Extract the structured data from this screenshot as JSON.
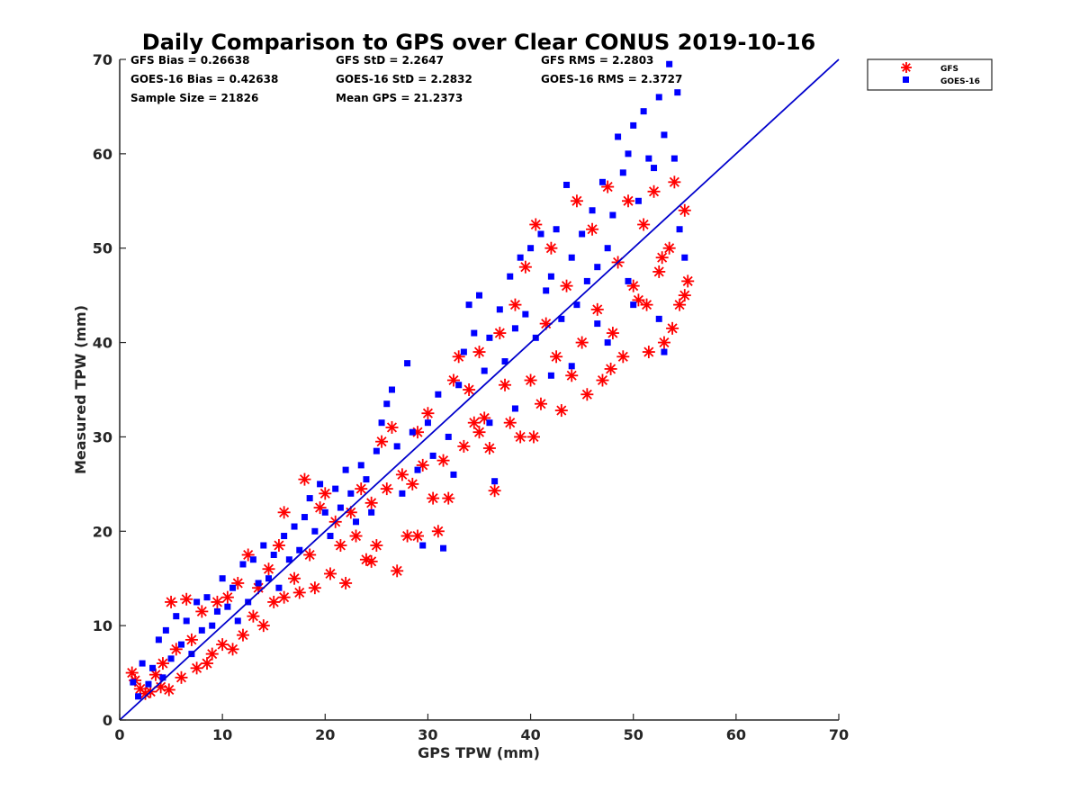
{
  "chart_data": {
    "type": "scatter",
    "title": "Daily Comparison to GPS over Clear CONUS 2019-10-16",
    "xlabel": "GPS TPW (mm)",
    "ylabel": "Measured TPW (mm)",
    "xlim": [
      0,
      70
    ],
    "ylim": [
      0,
      70
    ],
    "xticks": [
      0,
      10,
      20,
      30,
      40,
      50,
      60,
      70
    ],
    "yticks": [
      0,
      10,
      20,
      30,
      40,
      50,
      60,
      70
    ],
    "grid": false,
    "legend_position": "outside top-right",
    "stats": [
      "GFS Bias = 0.26638",
      "GFS StD = 2.2647",
      "GFS RMS = 2.2803",
      "GOES-16 Bias = 0.42638",
      "GOES-16 StD = 2.2832",
      "GOES-16 RMS = 2.3727",
      "Sample Size = 21826",
      "Mean GPS = 21.2373"
    ],
    "reference_line": {
      "name": "1:1 line",
      "x": [
        0,
        70
      ],
      "y": [
        0,
        70
      ],
      "color": "#0000cc"
    },
    "series": [
      {
        "name": "GFS",
        "marker": "asterisk",
        "color": "#ff0000",
        "points": [
          [
            1.2,
            5.0
          ],
          [
            1.5,
            4.2
          ],
          [
            2.0,
            3.3
          ],
          [
            2.5,
            2.8
          ],
          [
            3.0,
            3.0
          ],
          [
            3.5,
            4.8
          ],
          [
            4.0,
            3.5
          ],
          [
            4.2,
            6.0
          ],
          [
            4.8,
            3.2
          ],
          [
            5.0,
            12.5
          ],
          [
            5.5,
            7.5
          ],
          [
            6.0,
            4.5
          ],
          [
            6.5,
            12.8
          ],
          [
            7.0,
            8.5
          ],
          [
            7.5,
            5.5
          ],
          [
            8.0,
            11.5
          ],
          [
            8.5,
            6.0
          ],
          [
            9.0,
            7.0
          ],
          [
            9.5,
            12.5
          ],
          [
            10.0,
            8.0
          ],
          [
            10.5,
            13.0
          ],
          [
            11.0,
            7.5
          ],
          [
            11.5,
            14.5
          ],
          [
            12.0,
            9.0
          ],
          [
            12.5,
            17.5
          ],
          [
            13.0,
            11.0
          ],
          [
            13.5,
            14.0
          ],
          [
            14.0,
            10.0
          ],
          [
            14.5,
            16.0
          ],
          [
            15.0,
            12.5
          ],
          [
            15.5,
            18.5
          ],
          [
            16.0,
            13.0
          ],
          [
            16.0,
            22.0
          ],
          [
            17.0,
            15.0
          ],
          [
            17.5,
            13.5
          ],
          [
            18.0,
            25.5
          ],
          [
            18.5,
            17.5
          ],
          [
            19.0,
            14.0
          ],
          [
            19.5,
            22.5
          ],
          [
            20.0,
            24.0
          ],
          [
            20.5,
            15.5
          ],
          [
            21.0,
            21.0
          ],
          [
            21.5,
            18.5
          ],
          [
            22.0,
            14.5
          ],
          [
            22.5,
            22.0
          ],
          [
            23.0,
            19.5
          ],
          [
            23.5,
            24.5
          ],
          [
            24.0,
            17.0
          ],
          [
            24.5,
            23.0
          ],
          [
            25.0,
            18.5
          ],
          [
            25.5,
            29.5
          ],
          [
            26.0,
            24.5
          ],
          [
            26.5,
            31.0
          ],
          [
            27.0,
            15.8
          ],
          [
            27.5,
            26.0
          ],
          [
            28.0,
            19.5
          ],
          [
            28.5,
            25.0
          ],
          [
            29.0,
            30.5
          ],
          [
            29.5,
            27.0
          ],
          [
            30.0,
            32.5
          ],
          [
            30.5,
            23.5
          ],
          [
            31.0,
            20.0
          ],
          [
            31.5,
            27.5
          ],
          [
            32.0,
            23.5
          ],
          [
            32.5,
            36.0
          ],
          [
            33.0,
            38.5
          ],
          [
            33.5,
            29.0
          ],
          [
            34.0,
            35.0
          ],
          [
            34.5,
            31.5
          ],
          [
            35.0,
            39.0
          ],
          [
            35.5,
            32.0
          ],
          [
            36.0,
            28.8
          ],
          [
            36.5,
            24.3
          ],
          [
            37.0,
            41.0
          ],
          [
            37.5,
            35.5
          ],
          [
            38.0,
            31.5
          ],
          [
            38.5,
            44.0
          ],
          [
            39.0,
            30.0
          ],
          [
            39.5,
            48.0
          ],
          [
            40.0,
            36.0
          ],
          [
            40.5,
            52.5
          ],
          [
            41.0,
            33.5
          ],
          [
            41.5,
            42.0
          ],
          [
            42.0,
            50.0
          ],
          [
            42.5,
            38.5
          ],
          [
            43.0,
            32.8
          ],
          [
            43.5,
            46.0
          ],
          [
            44.0,
            36.5
          ],
          [
            44.5,
            55.0
          ],
          [
            45.0,
            40.0
          ],
          [
            45.5,
            34.5
          ],
          [
            46.0,
            52.0
          ],
          [
            46.5,
            43.5
          ],
          [
            47.0,
            36.0
          ],
          [
            47.5,
            56.5
          ],
          [
            48.0,
            41.0
          ],
          [
            48.5,
            48.5
          ],
          [
            49.0,
            38.5
          ],
          [
            49.5,
            55.0
          ],
          [
            50.0,
            46.0
          ],
          [
            50.5,
            44.5
          ],
          [
            51.0,
            52.5
          ],
          [
            51.5,
            39.0
          ],
          [
            52.0,
            56.0
          ],
          [
            52.5,
            47.5
          ],
          [
            53.0,
            40.0
          ],
          [
            53.5,
            50.0
          ],
          [
            54.0,
            57.0
          ],
          [
            54.5,
            44.0
          ],
          [
            55.0,
            45.0
          ],
          [
            55.3,
            46.5
          ],
          [
            55.0,
            54.0
          ],
          [
            53.8,
            41.5
          ],
          [
            52.8,
            49.0
          ],
          [
            51.3,
            44.0
          ],
          [
            47.8,
            37.2
          ],
          [
            40.3,
            30.0
          ],
          [
            35.0,
            30.5
          ],
          [
            24.5,
            16.8
          ],
          [
            29.0,
            19.5
          ]
        ]
      },
      {
        "name": "GOES-16",
        "marker": "square",
        "color": "#0000ff",
        "points": [
          [
            1.3,
            4.0
          ],
          [
            1.8,
            2.5
          ],
          [
            2.2,
            6.0
          ],
          [
            2.8,
            3.8
          ],
          [
            3.2,
            5.5
          ],
          [
            3.8,
            8.5
          ],
          [
            4.2,
            4.5
          ],
          [
            4.5,
            9.5
          ],
          [
            5.0,
            6.5
          ],
          [
            5.5,
            11.0
          ],
          [
            6.0,
            8.0
          ],
          [
            6.5,
            10.5
          ],
          [
            7.0,
            7.0
          ],
          [
            7.5,
            12.5
          ],
          [
            8.0,
            9.5
          ],
          [
            8.5,
            13.0
          ],
          [
            9.0,
            10.0
          ],
          [
            9.5,
            11.5
          ],
          [
            10.0,
            15.0
          ],
          [
            10.5,
            12.0
          ],
          [
            11.0,
            14.0
          ],
          [
            11.5,
            10.5
          ],
          [
            12.0,
            16.5
          ],
          [
            12.5,
            12.5
          ],
          [
            13.0,
            17.0
          ],
          [
            13.5,
            14.5
          ],
          [
            14.0,
            18.5
          ],
          [
            14.5,
            15.0
          ],
          [
            15.0,
            17.5
          ],
          [
            15.5,
            14.0
          ],
          [
            16.0,
            19.5
          ],
          [
            16.5,
            17.0
          ],
          [
            17.0,
            20.5
          ],
          [
            17.5,
            18.0
          ],
          [
            18.0,
            21.5
          ],
          [
            18.5,
            23.5
          ],
          [
            19.0,
            20.0
          ],
          [
            19.5,
            25.0
          ],
          [
            20.0,
            22.0
          ],
          [
            20.5,
            19.5
          ],
          [
            21.0,
            24.5
          ],
          [
            21.5,
            22.5
          ],
          [
            22.0,
            26.5
          ],
          [
            22.5,
            24.0
          ],
          [
            23.0,
            21.0
          ],
          [
            23.5,
            27.0
          ],
          [
            24.0,
            25.5
          ],
          [
            24.5,
            22.0
          ],
          [
            25.0,
            28.5
          ],
          [
            25.5,
            31.5
          ],
          [
            26.0,
            33.5
          ],
          [
            26.5,
            35.0
          ],
          [
            27.0,
            29.0
          ],
          [
            27.5,
            24.0
          ],
          [
            28.0,
            37.8
          ],
          [
            28.5,
            30.5
          ],
          [
            29.0,
            26.5
          ],
          [
            29.5,
            18.5
          ],
          [
            30.0,
            31.5
          ],
          [
            30.5,
            28.0
          ],
          [
            31.0,
            34.5
          ],
          [
            31.5,
            18.2
          ],
          [
            32.0,
            30.0
          ],
          [
            32.5,
            26.0
          ],
          [
            33.0,
            35.5
          ],
          [
            33.5,
            39.0
          ],
          [
            34.0,
            44.0
          ],
          [
            34.5,
            41.0
          ],
          [
            35.0,
            45.0
          ],
          [
            35.5,
            37.0
          ],
          [
            36.0,
            40.5
          ],
          [
            36.5,
            25.3
          ],
          [
            37.0,
            43.5
          ],
          [
            37.5,
            38.0
          ],
          [
            38.0,
            47.0
          ],
          [
            38.5,
            41.5
          ],
          [
            39.0,
            49.0
          ],
          [
            39.5,
            43.0
          ],
          [
            40.0,
            50.0
          ],
          [
            40.5,
            40.5
          ],
          [
            41.0,
            51.5
          ],
          [
            41.5,
            45.5
          ],
          [
            42.0,
            47.0
          ],
          [
            42.5,
            52.0
          ],
          [
            43.0,
            42.5
          ],
          [
            43.5,
            56.7
          ],
          [
            44.0,
            49.0
          ],
          [
            44.5,
            44.0
          ],
          [
            45.0,
            51.5
          ],
          [
            45.5,
            46.5
          ],
          [
            46.0,
            54.0
          ],
          [
            46.5,
            48.0
          ],
          [
            47.0,
            57.0
          ],
          [
            47.5,
            50.0
          ],
          [
            48.0,
            53.5
          ],
          [
            48.5,
            61.8
          ],
          [
            49.0,
            58.0
          ],
          [
            49.5,
            60.0
          ],
          [
            50.0,
            63.0
          ],
          [
            50.5,
            55.0
          ],
          [
            51.0,
            64.5
          ],
          [
            51.5,
            59.5
          ],
          [
            52.0,
            58.5
          ],
          [
            52.5,
            66.0
          ],
          [
            53.0,
            62.0
          ],
          [
            53.5,
            69.5
          ],
          [
            54.0,
            59.5
          ],
          [
            54.3,
            66.5
          ],
          [
            54.5,
            52.0
          ],
          [
            55.0,
            49.0
          ],
          [
            52.5,
            42.5
          ],
          [
            53.0,
            39.0
          ],
          [
            50.0,
            44.0
          ],
          [
            47.5,
            40.0
          ],
          [
            44.0,
            37.5
          ],
          [
            38.5,
            33.0
          ],
          [
            36.0,
            31.5
          ],
          [
            42.0,
            36.5
          ],
          [
            46.5,
            42.0
          ],
          [
            49.5,
            46.5
          ]
        ]
      }
    ]
  }
}
